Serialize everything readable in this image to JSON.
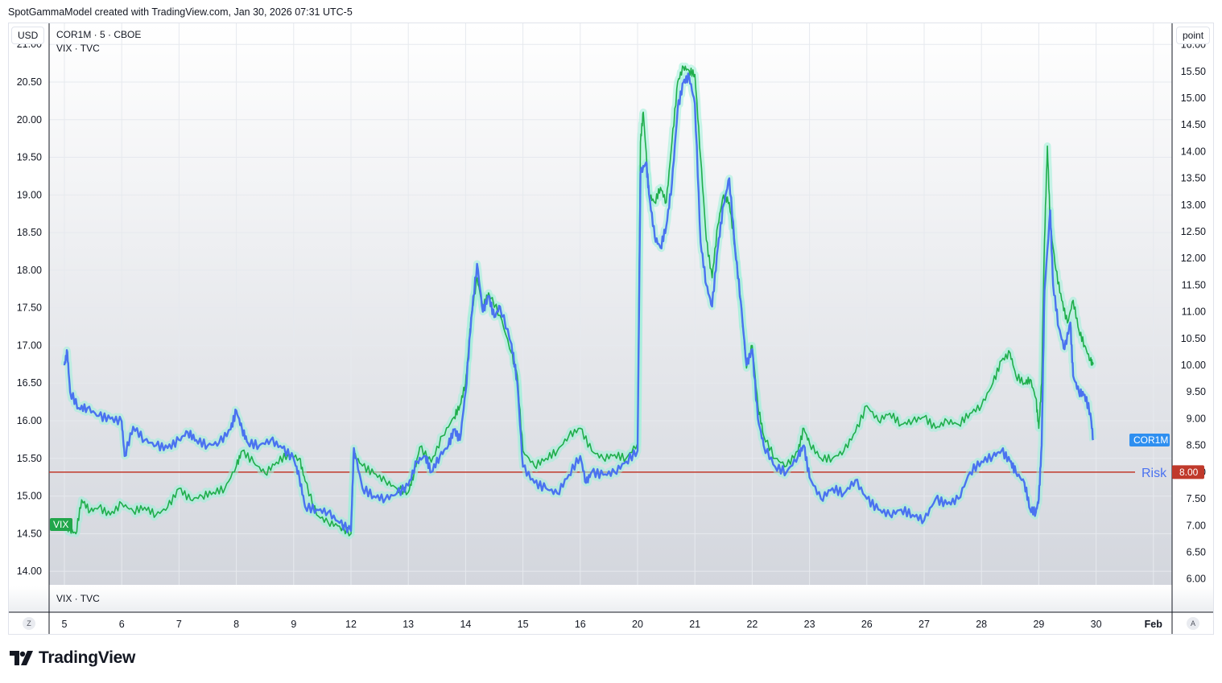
{
  "header": {
    "text": "SpotGammaModel created with TradingView.com, Jan 30, 2026 07:31 UTC-5"
  },
  "scales": {
    "left_unit": "USD",
    "right_unit": "point"
  },
  "legend": {
    "line1": "COR1M · 5 · CBOE",
    "line2": "VIX · TVC",
    "pane_label": "VIX · TVC"
  },
  "buttons": {
    "left_corner": "Z",
    "right_corner": "A"
  },
  "footer": {
    "brand": "TradingView"
  },
  "colors": {
    "vix": "#1fae4b",
    "cor1m": "#4a72f0",
    "risk": "#c0392b",
    "glow": "#9ff0d8",
    "cor1m_tag": "#2e8ff0",
    "vix_tag": "#21a64b"
  },
  "chart_data": {
    "type": "line",
    "x_categories": [
      "5",
      "6",
      "7",
      "8",
      "9",
      "12",
      "13",
      "14",
      "15",
      "16",
      "20",
      "21",
      "22",
      "23",
      "26",
      "27",
      "28",
      "29",
      "30",
      "Feb"
    ],
    "left_axis": {
      "unit": "USD",
      "ticks": [
        "14.00",
        "14.50",
        "15.00",
        "15.50",
        "16.00",
        "16.50",
        "17.00",
        "17.50",
        "18.00",
        "18.50",
        "19.00",
        "19.50",
        "20.00",
        "20.50",
        "21.00"
      ],
      "range": [
        13.82,
        21.28
      ]
    },
    "right_axis": {
      "unit": "point",
      "ticks": [
        "6.00",
        "6.50",
        "7.00",
        "7.50",
        "8.00",
        "8.50",
        "9.00",
        "9.50",
        "10.00",
        "10.50",
        "11.00",
        "11.50",
        "12.00",
        "12.50",
        "13.00",
        "13.50",
        "14.00",
        "14.50",
        "15.00",
        "15.50",
        "16.00"
      ],
      "range": [
        5.89,
        16.4
      ]
    },
    "risk_line": {
      "label": "Risk",
      "value": 8.0,
      "value_label": "8.00",
      "axis": "right"
    },
    "series": [
      {
        "name": "VIX",
        "axis": "left",
        "tag": "VIX",
        "points": [
          [
            0,
            14.6
          ],
          [
            0.1,
            14.55
          ],
          [
            0.2,
            14.5
          ],
          [
            0.3,
            14.95
          ],
          [
            0.45,
            14.8
          ],
          [
            0.6,
            14.85
          ],
          [
            0.8,
            14.75
          ],
          [
            1.0,
            14.9
          ],
          [
            1.2,
            14.8
          ],
          [
            1.4,
            14.85
          ],
          [
            1.6,
            14.75
          ],
          [
            1.8,
            14.85
          ],
          [
            2.0,
            15.1
          ],
          [
            2.2,
            14.95
          ],
          [
            2.4,
            15.0
          ],
          [
            2.6,
            15.05
          ],
          [
            2.8,
            15.1
          ],
          [
            3.0,
            15.4
          ],
          [
            3.1,
            15.6
          ],
          [
            3.3,
            15.45
          ],
          [
            3.5,
            15.3
          ],
          [
            3.7,
            15.45
          ],
          [
            3.9,
            15.55
          ],
          [
            4.1,
            15.5
          ],
          [
            4.2,
            15.2
          ],
          [
            4.4,
            14.75
          ],
          [
            4.6,
            14.65
          ],
          [
            4.8,
            14.6
          ],
          [
            5.0,
            14.5
          ],
          [
            5.05,
            15.55
          ],
          [
            5.2,
            15.4
          ],
          [
            5.4,
            15.3
          ],
          [
            5.6,
            15.2
          ],
          [
            5.8,
            15.1
          ],
          [
            6.0,
            15.05
          ],
          [
            6.1,
            15.3
          ],
          [
            6.2,
            15.65
          ],
          [
            6.4,
            15.45
          ],
          [
            6.6,
            15.8
          ],
          [
            6.8,
            16.05
          ],
          [
            6.9,
            16.2
          ],
          [
            7.0,
            16.5
          ],
          [
            7.05,
            16.95
          ],
          [
            7.1,
            17.4
          ],
          [
            7.2,
            17.9
          ],
          [
            7.3,
            17.5
          ],
          [
            7.4,
            17.7
          ],
          [
            7.6,
            17.4
          ],
          [
            7.8,
            16.9
          ],
          [
            7.9,
            16.6
          ],
          [
            8.0,
            15.6
          ],
          [
            8.2,
            15.4
          ],
          [
            8.4,
            15.5
          ],
          [
            8.6,
            15.6
          ],
          [
            8.8,
            15.8
          ],
          [
            9.0,
            15.9
          ],
          [
            9.2,
            15.6
          ],
          [
            9.4,
            15.5
          ],
          [
            9.6,
            15.55
          ],
          [
            9.8,
            15.5
          ],
          [
            10.0,
            15.7
          ],
          [
            10.05,
            19.7
          ],
          [
            10.1,
            20.1
          ],
          [
            10.2,
            19.0
          ],
          [
            10.3,
            18.9
          ],
          [
            10.4,
            19.1
          ],
          [
            10.5,
            18.9
          ],
          [
            10.6,
            19.7
          ],
          [
            10.7,
            20.5
          ],
          [
            10.8,
            20.7
          ],
          [
            10.9,
            20.65
          ],
          [
            11.0,
            20.6
          ],
          [
            11.1,
            19.5
          ],
          [
            11.2,
            18.4
          ],
          [
            11.3,
            17.9
          ],
          [
            11.4,
            18.6
          ],
          [
            11.5,
            19.0
          ],
          [
            11.6,
            18.9
          ],
          [
            11.7,
            18.3
          ],
          [
            11.8,
            17.6
          ],
          [
            11.9,
            16.7
          ],
          [
            12.0,
            17.0
          ],
          [
            12.1,
            16.2
          ],
          [
            12.2,
            15.8
          ],
          [
            12.4,
            15.5
          ],
          [
            12.6,
            15.4
          ],
          [
            12.8,
            15.6
          ],
          [
            12.9,
            15.9
          ],
          [
            13.0,
            15.7
          ],
          [
            13.2,
            15.5
          ],
          [
            13.4,
            15.5
          ],
          [
            13.6,
            15.6
          ],
          [
            13.8,
            15.85
          ],
          [
            14.0,
            16.2
          ],
          [
            14.2,
            16.0
          ],
          [
            14.4,
            16.1
          ],
          [
            14.6,
            15.95
          ],
          [
            14.8,
            16.0
          ],
          [
            15.0,
            16.05
          ],
          [
            15.2,
            15.9
          ],
          [
            15.4,
            16.0
          ],
          [
            15.6,
            15.95
          ],
          [
            15.8,
            16.1
          ],
          [
            16.0,
            16.2
          ],
          [
            16.2,
            16.5
          ],
          [
            16.35,
            16.8
          ],
          [
            16.5,
            16.9
          ],
          [
            16.6,
            16.6
          ],
          [
            16.75,
            16.5
          ],
          [
            16.85,
            16.55
          ],
          [
            16.95,
            16.3
          ],
          [
            17.0,
            15.9
          ],
          [
            17.05,
            16.5
          ],
          [
            17.1,
            18.4
          ],
          [
            17.15,
            19.65
          ],
          [
            17.2,
            18.6
          ],
          [
            17.3,
            18.0
          ],
          [
            17.4,
            17.6
          ],
          [
            17.5,
            17.3
          ],
          [
            17.6,
            17.6
          ],
          [
            17.7,
            17.2
          ],
          [
            17.8,
            17.0
          ],
          [
            17.9,
            16.8
          ],
          [
            17.95,
            16.75
          ]
        ]
      },
      {
        "name": "COR1M",
        "axis": "right",
        "tag": "COR1M",
        "points": [
          [
            0,
            10.0
          ],
          [
            0.05,
            10.25
          ],
          [
            0.1,
            9.5
          ],
          [
            0.25,
            9.2
          ],
          [
            0.4,
            9.2
          ],
          [
            0.6,
            9.05
          ],
          [
            0.8,
            9.0
          ],
          [
            1.0,
            8.95
          ],
          [
            1.05,
            8.3
          ],
          [
            1.2,
            8.85
          ],
          [
            1.4,
            8.6
          ],
          [
            1.6,
            8.5
          ],
          [
            1.8,
            8.45
          ],
          [
            2.0,
            8.6
          ],
          [
            2.15,
            8.75
          ],
          [
            2.3,
            8.6
          ],
          [
            2.5,
            8.5
          ],
          [
            2.7,
            8.55
          ],
          [
            2.9,
            8.8
          ],
          [
            3.0,
            9.15
          ],
          [
            3.1,
            8.8
          ],
          [
            3.2,
            8.55
          ],
          [
            3.4,
            8.5
          ],
          [
            3.6,
            8.6
          ],
          [
            3.8,
            8.45
          ],
          [
            4.0,
            8.25
          ],
          [
            4.1,
            7.9
          ],
          [
            4.2,
            7.35
          ],
          [
            4.4,
            7.3
          ],
          [
            4.6,
            7.25
          ],
          [
            4.8,
            7.05
          ],
          [
            5.0,
            6.9
          ],
          [
            5.05,
            8.45
          ],
          [
            5.2,
            7.7
          ],
          [
            5.4,
            7.55
          ],
          [
            5.6,
            7.5
          ],
          [
            5.8,
            7.6
          ],
          [
            6.0,
            7.75
          ],
          [
            6.15,
            8.2
          ],
          [
            6.3,
            8.3
          ],
          [
            6.4,
            8.0
          ],
          [
            6.55,
            8.3
          ],
          [
            6.7,
            8.5
          ],
          [
            6.8,
            8.8
          ],
          [
            6.9,
            8.6
          ],
          [
            7.0,
            9.5
          ],
          [
            7.1,
            10.9
          ],
          [
            7.2,
            11.9
          ],
          [
            7.3,
            11.0
          ],
          [
            7.4,
            11.3
          ],
          [
            7.5,
            10.9
          ],
          [
            7.6,
            11.1
          ],
          [
            7.8,
            10.4
          ],
          [
            7.9,
            9.7
          ],
          [
            8.0,
            8.1
          ],
          [
            8.2,
            7.8
          ],
          [
            8.4,
            7.7
          ],
          [
            8.6,
            7.6
          ],
          [
            8.8,
            7.95
          ],
          [
            9.0,
            8.3
          ],
          [
            9.1,
            7.8
          ],
          [
            9.2,
            8.0
          ],
          [
            9.4,
            7.95
          ],
          [
            9.6,
            8.0
          ],
          [
            9.8,
            8.2
          ],
          [
            10.0,
            8.4
          ],
          [
            10.05,
            13.6
          ],
          [
            10.15,
            13.8
          ],
          [
            10.2,
            13.2
          ],
          [
            10.3,
            12.4
          ],
          [
            10.4,
            12.2
          ],
          [
            10.5,
            12.6
          ],
          [
            10.6,
            13.4
          ],
          [
            10.7,
            14.8
          ],
          [
            10.8,
            15.3
          ],
          [
            10.9,
            15.4
          ],
          [
            11.0,
            14.9
          ],
          [
            11.1,
            12.3
          ],
          [
            11.2,
            11.5
          ],
          [
            11.3,
            11.1
          ],
          [
            11.4,
            12.2
          ],
          [
            11.5,
            13.0
          ],
          [
            11.6,
            13.5
          ],
          [
            11.7,
            12.2
          ],
          [
            11.8,
            11.2
          ],
          [
            11.9,
            10.0
          ],
          [
            12.0,
            10.3
          ],
          [
            12.1,
            9.0
          ],
          [
            12.2,
            8.5
          ],
          [
            12.4,
            8.1
          ],
          [
            12.6,
            8.0
          ],
          [
            12.8,
            8.3
          ],
          [
            12.9,
            8.5
          ],
          [
            13.0,
            7.9
          ],
          [
            13.2,
            7.5
          ],
          [
            13.4,
            7.7
          ],
          [
            13.6,
            7.6
          ],
          [
            13.8,
            7.85
          ],
          [
            14.0,
            7.5
          ],
          [
            14.2,
            7.3
          ],
          [
            14.4,
            7.2
          ],
          [
            14.6,
            7.3
          ],
          [
            14.8,
            7.2
          ],
          [
            15.0,
            7.1
          ],
          [
            15.2,
            7.5
          ],
          [
            15.4,
            7.4
          ],
          [
            15.6,
            7.5
          ],
          [
            15.8,
            8.0
          ],
          [
            16.0,
            8.2
          ],
          [
            16.2,
            8.3
          ],
          [
            16.35,
            8.4
          ],
          [
            16.5,
            8.2
          ],
          [
            16.6,
            8.0
          ],
          [
            16.75,
            7.8
          ],
          [
            16.85,
            7.3
          ],
          [
            16.95,
            7.25
          ],
          [
            17.0,
            7.5
          ],
          [
            17.05,
            8.5
          ],
          [
            17.1,
            11.4
          ],
          [
            17.2,
            12.9
          ],
          [
            17.25,
            11.5
          ],
          [
            17.35,
            10.7
          ],
          [
            17.45,
            10.3
          ],
          [
            17.55,
            10.8
          ],
          [
            17.6,
            9.8
          ],
          [
            17.7,
            9.5
          ],
          [
            17.8,
            9.45
          ],
          [
            17.9,
            9.1
          ],
          [
            17.95,
            8.6
          ]
        ]
      }
    ]
  }
}
